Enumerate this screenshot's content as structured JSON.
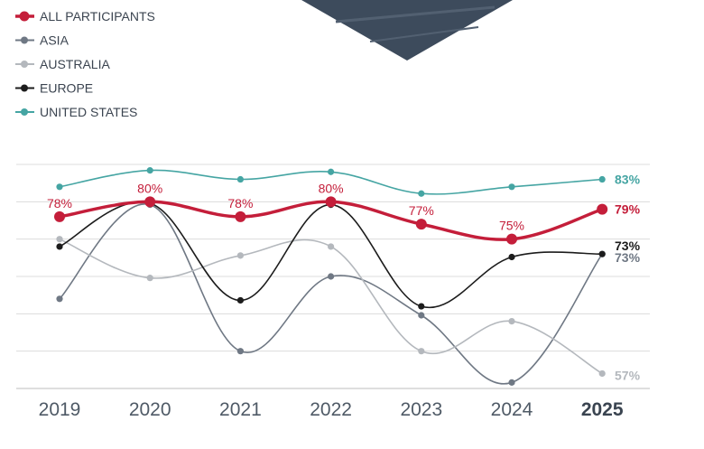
{
  "chart_data": {
    "type": "line",
    "title": "",
    "xlabel": "",
    "ylabel": "",
    "categories": [
      "2019",
      "2020",
      "2021",
      "2022",
      "2023",
      "2024",
      "2025"
    ],
    "highlight_category": "2025",
    "ylim": [
      55,
      85
    ],
    "grid": true,
    "legend_position": "top-left",
    "series": [
      {
        "name": "ALL PARTICIPANTS",
        "color": "#c41e3a",
        "values": [
          78,
          80,
          78,
          80,
          77,
          75,
          79
        ],
        "point_labels": [
          "78%",
          "80%",
          "78%",
          "80%",
          "77%",
          "75%",
          null
        ],
        "end_label": "79%"
      },
      {
        "name": "ASIA",
        "color": "#6f7884",
        "values": [
          67,
          79.6,
          60,
          70,
          64.8,
          55.8,
          73
        ],
        "end_label": "73%"
      },
      {
        "name": "AUSTRALIA",
        "color": "#b4b8bd",
        "values": [
          75,
          69.8,
          72.8,
          74,
          60,
          64,
          57
        ],
        "end_label": "57%"
      },
      {
        "name": "EUROPE",
        "color": "#1c1c1c",
        "values": [
          74,
          79.8,
          66.8,
          79.6,
          66,
          72.6,
          73
        ],
        "end_label": "73%"
      },
      {
        "name": "UNITED STATES",
        "color": "#45a5a3",
        "values": [
          82,
          84.2,
          83,
          84,
          81.1,
          82,
          83
        ],
        "end_label": "83%"
      }
    ]
  }
}
